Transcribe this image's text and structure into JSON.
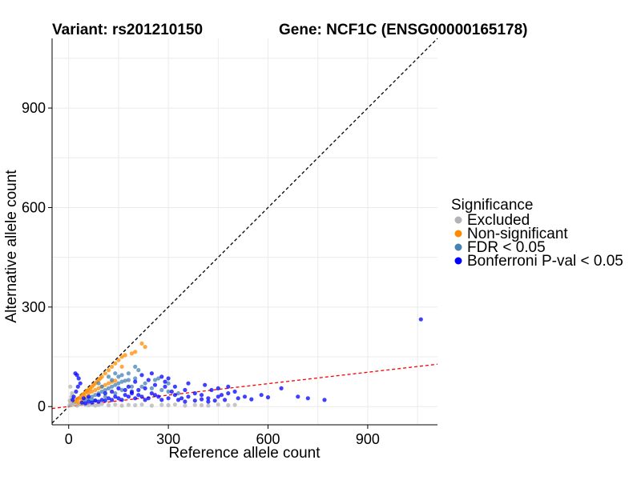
{
  "chart_data": {
    "type": "scatter",
    "title_left": "Variant: rs201210150",
    "title_right": "Gene: NCF1C (ENSG00000165178)",
    "xlabel": "Reference allele count",
    "ylabel": "Alternative allele count",
    "xlim": [
      -50,
      1110
    ],
    "ylim": [
      -55,
      1110
    ],
    "x_ticks": [
      0,
      300,
      600,
      900
    ],
    "y_ticks": [
      0,
      300,
      600,
      900
    ],
    "grid": true,
    "reference_lines": [
      {
        "name": "identity",
        "slope": 1,
        "intercept": 0,
        "color": "#000000",
        "style": "dashed"
      },
      {
        "name": "fit",
        "slope": 0.115,
        "intercept": 0,
        "color": "#ff0000",
        "style": "dashed"
      }
    ],
    "legend": {
      "title": "Significance",
      "position": "right",
      "entries": [
        {
          "label": "Excluded",
          "color": "#b3b3b3"
        },
        {
          "label": "Non-significant",
          "color": "#ff8c00"
        },
        {
          "label": "FDR < 0.05",
          "color": "#4682b4"
        },
        {
          "label": "Bonferroni P-val < 0.05",
          "color": "#0000ff"
        }
      ]
    },
    "series": [
      {
        "name": "Excluded",
        "color": "#b3b3b3",
        "points": [
          [
            2,
            3
          ],
          [
            5,
            10
          ],
          [
            8,
            20
          ],
          [
            10,
            5
          ],
          [
            15,
            8
          ],
          [
            20,
            12
          ],
          [
            25,
            3
          ],
          [
            30,
            6
          ],
          [
            40,
            8
          ],
          [
            50,
            5
          ],
          [
            60,
            4
          ],
          [
            70,
            6
          ],
          [
            80,
            3
          ],
          [
            90,
            5
          ],
          [
            100,
            8
          ],
          [
            120,
            4
          ],
          [
            140,
            6
          ],
          [
            160,
            3
          ],
          [
            180,
            5
          ],
          [
            200,
            4
          ],
          [
            220,
            6
          ],
          [
            250,
            3
          ],
          [
            280,
            5
          ],
          [
            300,
            4
          ],
          [
            320,
            6
          ],
          [
            350,
            3
          ],
          [
            380,
            5
          ],
          [
            400,
            4
          ],
          [
            420,
            3
          ],
          [
            450,
            6
          ],
          [
            480,
            4
          ],
          [
            500,
            5
          ],
          [
            10,
            40
          ],
          [
            5,
            60
          ],
          [
            8,
            30
          ],
          [
            3,
            18
          ]
        ]
      },
      {
        "name": "Non-significant",
        "color": "#ff8c00",
        "points": [
          [
            20,
            15
          ],
          [
            25,
            22
          ],
          [
            30,
            25
          ],
          [
            35,
            28
          ],
          [
            40,
            35
          ],
          [
            45,
            38
          ],
          [
            50,
            42
          ],
          [
            55,
            48
          ],
          [
            60,
            50
          ],
          [
            65,
            55
          ],
          [
            70,
            60
          ],
          [
            75,
            65
          ],
          [
            80,
            70
          ],
          [
            85,
            75
          ],
          [
            90,
            80
          ],
          [
            95,
            85
          ],
          [
            100,
            90
          ],
          [
            110,
            100
          ],
          [
            120,
            110
          ],
          [
            130,
            120
          ],
          [
            140,
            130
          ],
          [
            150,
            140
          ],
          [
            160,
            150
          ],
          [
            170,
            155
          ],
          [
            200,
            165
          ],
          [
            220,
            190
          ],
          [
            230,
            180
          ],
          [
            60,
            40
          ],
          [
            70,
            45
          ],
          [
            80,
            50
          ],
          [
            90,
            55
          ],
          [
            100,
            60
          ],
          [
            110,
            65
          ],
          [
            120,
            70
          ],
          [
            130,
            75
          ],
          [
            140,
            78
          ],
          [
            50,
            30
          ],
          [
            40,
            20
          ],
          [
            30,
            12
          ],
          [
            160,
            120
          ],
          [
            190,
            160
          ]
        ]
      },
      {
        "name": "FDR < 0.05",
        "color": "#4682b4",
        "points": [
          [
            50,
            20
          ],
          [
            60,
            25
          ],
          [
            70,
            30
          ],
          [
            80,
            35
          ],
          [
            90,
            40
          ],
          [
            100,
            45
          ],
          [
            110,
            50
          ],
          [
            120,
            55
          ],
          [
            130,
            60
          ],
          [
            140,
            65
          ],
          [
            150,
            70
          ],
          [
            160,
            75
          ],
          [
            170,
            78
          ],
          [
            180,
            80
          ],
          [
            200,
            85
          ],
          [
            210,
            110
          ],
          [
            130,
            80
          ],
          [
            120,
            90
          ],
          [
            140,
            100
          ],
          [
            100,
            60
          ],
          [
            90,
            70
          ],
          [
            150,
            90
          ],
          [
            160,
            95
          ],
          [
            180,
            100
          ],
          [
            220,
            60
          ],
          [
            250,
            55
          ],
          [
            280,
            50
          ],
          [
            300,
            45
          ],
          [
            330,
            40
          ],
          [
            70,
            20
          ],
          [
            80,
            18
          ],
          [
            110,
            30
          ],
          [
            140,
            40
          ],
          [
            160,
            50
          ],
          [
            190,
            60
          ],
          [
            230,
            70
          ],
          [
            260,
            80
          ],
          [
            270,
            85
          ],
          [
            300,
            70
          ],
          [
            200,
            120
          ]
        ]
      },
      {
        "name": "Bonferroni P-val < 0.05",
        "color": "#0000ff",
        "points": [
          [
            1060,
            263
          ],
          [
            770,
            20
          ],
          [
            720,
            25
          ],
          [
            690,
            30
          ],
          [
            640,
            55
          ],
          [
            580,
            35
          ],
          [
            530,
            30
          ],
          [
            500,
            45
          ],
          [
            480,
            40
          ],
          [
            460,
            35
          ],
          [
            450,
            30
          ],
          [
            430,
            50
          ],
          [
            420,
            25
          ],
          [
            400,
            35
          ],
          [
            380,
            40
          ],
          [
            360,
            30
          ],
          [
            350,
            50
          ],
          [
            340,
            25
          ],
          [
            320,
            35
          ],
          [
            310,
            45
          ],
          [
            300,
            25
          ],
          [
            290,
            60
          ],
          [
            280,
            20
          ],
          [
            270,
            30
          ],
          [
            260,
            35
          ],
          [
            250,
            40
          ],
          [
            240,
            25
          ],
          [
            230,
            20
          ],
          [
            220,
            30
          ],
          [
            210,
            35
          ],
          [
            200,
            25
          ],
          [
            190,
            40
          ],
          [
            180,
            30
          ],
          [
            170,
            35
          ],
          [
            160,
            20
          ],
          [
            150,
            25
          ],
          [
            140,
            30
          ],
          [
            130,
            20
          ],
          [
            120,
            25
          ],
          [
            110,
            18
          ],
          [
            100,
            20
          ],
          [
            90,
            15
          ],
          [
            80,
            18
          ],
          [
            70,
            12
          ],
          [
            60,
            15
          ],
          [
            50,
            10
          ],
          [
            40,
            12
          ],
          [
            35,
            70
          ],
          [
            30,
            85
          ],
          [
            25,
            95
          ],
          [
            20,
            100
          ],
          [
            28,
            60
          ],
          [
            22,
            45
          ],
          [
            15,
            30
          ],
          [
            12,
            20
          ],
          [
            280,
            90
          ],
          [
            300,
            85
          ],
          [
            240,
            80
          ],
          [
            200,
            75
          ],
          [
            180,
            60
          ],
          [
            220,
            95
          ],
          [
            250,
            100
          ],
          [
            330,
            20
          ],
          [
            350,
            15
          ],
          [
            380,
            18
          ],
          [
            400,
            22
          ],
          [
            420,
            15
          ],
          [
            440,
            18
          ],
          [
            470,
            20
          ],
          [
            510,
            25
          ],
          [
            550,
            22
          ],
          [
            600,
            28
          ],
          [
            320,
            60
          ],
          [
            360,
            70
          ],
          [
            410,
            65
          ],
          [
            450,
            55
          ],
          [
            480,
            60
          ],
          [
            290,
            75
          ],
          [
            260,
            65
          ],
          [
            230,
            55
          ],
          [
            210,
            50
          ],
          [
            190,
            45
          ],
          [
            170,
            50
          ],
          [
            150,
            55
          ],
          [
            130,
            45
          ],
          [
            110,
            40
          ],
          [
            90,
            35
          ],
          [
            60,
            30
          ],
          [
            45,
            25
          ]
        ]
      }
    ]
  }
}
